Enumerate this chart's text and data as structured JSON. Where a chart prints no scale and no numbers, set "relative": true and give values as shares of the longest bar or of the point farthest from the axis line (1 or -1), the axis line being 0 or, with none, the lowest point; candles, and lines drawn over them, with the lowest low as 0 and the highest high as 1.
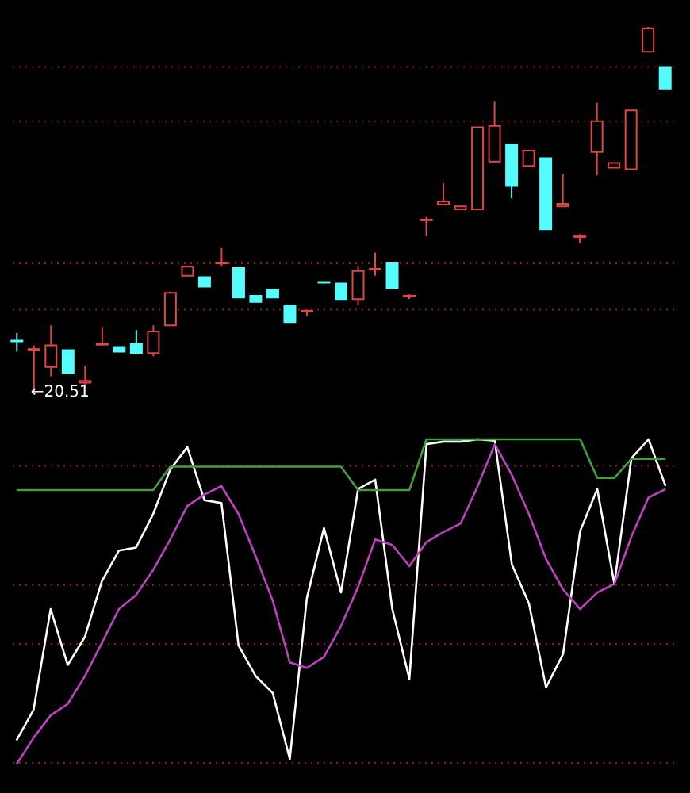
{
  "chart_data": [
    {
      "type": "candlestick",
      "relative": true,
      "tick_labels": false,
      "categories": [
        null,
        null,
        null,
        null,
        null,
        null,
        null,
        null,
        null,
        null,
        null,
        null,
        null,
        null,
        null,
        null,
        null,
        null,
        null,
        null,
        null,
        null,
        null,
        null,
        null,
        null,
        null,
        null,
        null,
        null,
        null,
        null,
        null,
        null,
        null,
        null,
        null,
        null,
        null
      ],
      "ohlc": [
        [
          0.14,
          0.161,
          0.11,
          0.138
        ],
        [
          0.114,
          0.127,
          0,
          0.117
        ],
        [
          0.068,
          0.182,
          0.042,
          0.127
        ],
        [
          0.114,
          0.114,
          0.051,
          0.051
        ],
        [
          0.025,
          0.072,
          0.017,
          0.03
        ],
        [
          0.129,
          0.178,
          0.127,
          0.131
        ],
        [
          0.123,
          0.123,
          0.11,
          0.11
        ],
        [
          0.131,
          0.169,
          0.102,
          0.106
        ],
        [
          0.106,
          0.182,
          0.097,
          0.165
        ],
        [
          0.182,
          0.275,
          0.182,
          0.271
        ],
        [
          0.318,
          0.343,
          0.318,
          0.343
        ],
        [
          0.314,
          0.314,
          0.288,
          0.288
        ],
        [
          0.352,
          0.394,
          0.343,
          0.354
        ],
        [
          0.339,
          0.339,
          0.258,
          0.258
        ],
        [
          0.263,
          0.263,
          0.246,
          0.246
        ],
        [
          0.28,
          0.28,
          0.258,
          0.258
        ],
        [
          0.237,
          0.237,
          0.191,
          0.191
        ],
        [
          0.22,
          0.225,
          0.208,
          0.222
        ],
        [
          0.301,
          0.301,
          0.297,
          0.299
        ],
        [
          0.297,
          0.297,
          0.254,
          0.254
        ],
        [
          0.254,
          0.343,
          0.237,
          0.331
        ],
        [
          0.335,
          0.381,
          0.318,
          0.337
        ],
        [
          0.352,
          0.354,
          0.284,
          0.284
        ],
        [
          0.261,
          0.267,
          0.254,
          0.263
        ],
        [
          0.47,
          0.479,
          0.428,
          0.472
        ],
        [
          0.513,
          0.572,
          0.513,
          0.521
        ],
        [
          0.5,
          0.508,
          0.5,
          0.508
        ],
        [
          0.5,
          0.725,
          0.5,
          0.725
        ],
        [
          0.631,
          0.797,
          0.627,
          0.729
        ],
        [
          0.678,
          0.678,
          0.53,
          0.564
        ],
        [
          0.619,
          0.661,
          0.619,
          0.661
        ],
        [
          0.64,
          0.64,
          0.445,
          0.445
        ],
        [
          0.508,
          0.597,
          0.508,
          0.515
        ],
        [
          0.424,
          0.432,
          0.407,
          0.428
        ],
        [
          0.657,
          0.792,
          0.593,
          0.742
        ],
        [
          0.614,
          0.627,
          0.614,
          0.627
        ],
        [
          0.61,
          0.771,
          0.61,
          0.771
        ],
        [
          0.932,
          1.0,
          0.932,
          0.996
        ],
        [
          0.89,
          0.89,
          0.831,
          0.831
        ]
      ],
      "colors": [
        "#54fcfc",
        "#e04646",
        "#e04646",
        "#54fcfc",
        "#e04646",
        "#e04646",
        "#54fcfc",
        "#54fcfc",
        "#e04646",
        "#e04646",
        "#e04646",
        "#54fcfc",
        "#e04646",
        "#54fcfc",
        "#54fcfc",
        "#54fcfc",
        "#54fcfc",
        "#e04646",
        "#54fcfc",
        "#54fcfc",
        "#e04646",
        "#e04646",
        "#54fcfc",
        "#e04646",
        "#e04646",
        "#e04646",
        "#e04646",
        "#e04646",
        "#e04646",
        "#54fcfc",
        "#e04646",
        "#54fcfc",
        "#e04646",
        "#e04646",
        "#e04646",
        "#e04646",
        "#e04646",
        "#e04646",
        "#54fcfc"
      ],
      "annotations": [
        "←20.51"
      ],
      "ref_lines": [
        {
          "axis": "y",
          "value": 0.89,
          "color": "#8b1a1a",
          "line_style": "dotted"
        },
        {
          "axis": "y",
          "value": 0.742,
          "color": "#8b1a1a",
          "line_style": "dotted"
        },
        {
          "axis": "y",
          "value": 0.352,
          "color": "#8b1a1a",
          "line_style": "dotted"
        },
        {
          "axis": "y",
          "value": 0.225,
          "color": "#8b1a1a",
          "line_style": "dotted"
        }
      ]
    },
    {
      "type": "line",
      "relative": true,
      "tick_labels": false,
      "categories": [
        null,
        null,
        null,
        null,
        null,
        null,
        null,
        null,
        null,
        null,
        null,
        null,
        null,
        null,
        null,
        null,
        null,
        null,
        null,
        null,
        null,
        null,
        null,
        null,
        null,
        null,
        null,
        null,
        null,
        null,
        null,
        null,
        null,
        null,
        null,
        null,
        null,
        null,
        null
      ],
      "series": [
        {
          "type": "line",
          "color": "#ffffff",
          "values": [
            0.074,
            0.168,
            0.478,
            0.306,
            0.392,
            0.564,
            0.658,
            0.667,
            0.77,
            0.907,
            0.976,
            0.813,
            0.804,
            0.366,
            0.272,
            0.22,
            0.017,
            0.512,
            0.727,
            0.529,
            0.847,
            0.876,
            0.478,
            0.263,
            0.985,
            0.993,
            0.993,
            1.0,
            0.996,
            0.615,
            0.495,
            0.237,
            0.34,
            0.718,
            0.847,
            0.555,
            0.942,
            1.0,
            0.856
          ]
        },
        {
          "type": "line",
          "color": "#c040c0",
          "values": [
            0.0,
            0.082,
            0.151,
            0.186,
            0.271,
            0.374,
            0.478,
            0.521,
            0.598,
            0.692,
            0.795,
            0.83,
            0.856,
            0.77,
            0.641,
            0.504,
            0.314,
            0.297,
            0.331,
            0.426,
            0.546,
            0.692,
            0.675,
            0.61,
            0.684,
            0.715,
            0.741,
            0.856,
            0.985,
            0.89,
            0.77,
            0.632,
            0.538,
            0.478,
            0.529,
            0.555,
            0.701,
            0.821,
            0.847
          ]
        },
        {
          "type": "line",
          "color": "#40a040",
          "values": [
            0.844,
            0.844,
            0.844,
            0.844,
            0.844,
            0.844,
            0.844,
            0.844,
            0.844,
            0.916,
            0.916,
            0.916,
            0.916,
            0.916,
            0.916,
            0.916,
            0.916,
            0.916,
            0.916,
            0.916,
            0.844,
            0.844,
            0.844,
            0.844,
            1.0,
            1.0,
            1.0,
            1.0,
            1.0,
            1.0,
            1.0,
            1.0,
            1.0,
            1.0,
            0.881,
            0.881,
            0.94,
            0.94,
            0.94
          ]
        }
      ],
      "ref_lines": [
        {
          "axis": "y",
          "value": 0.918,
          "color": "#8b1a1a",
          "line_style": "dotted"
        },
        {
          "axis": "y",
          "value": 0.552,
          "color": "#8b1a1a",
          "line_style": "dotted"
        },
        {
          "axis": "y",
          "value": 0.371,
          "color": "#8b1a1a",
          "line_style": "dotted"
        },
        {
          "axis": "y",
          "value": 0.005,
          "color": "#8b1a1a",
          "line_style": "dotted"
        }
      ]
    }
  ]
}
